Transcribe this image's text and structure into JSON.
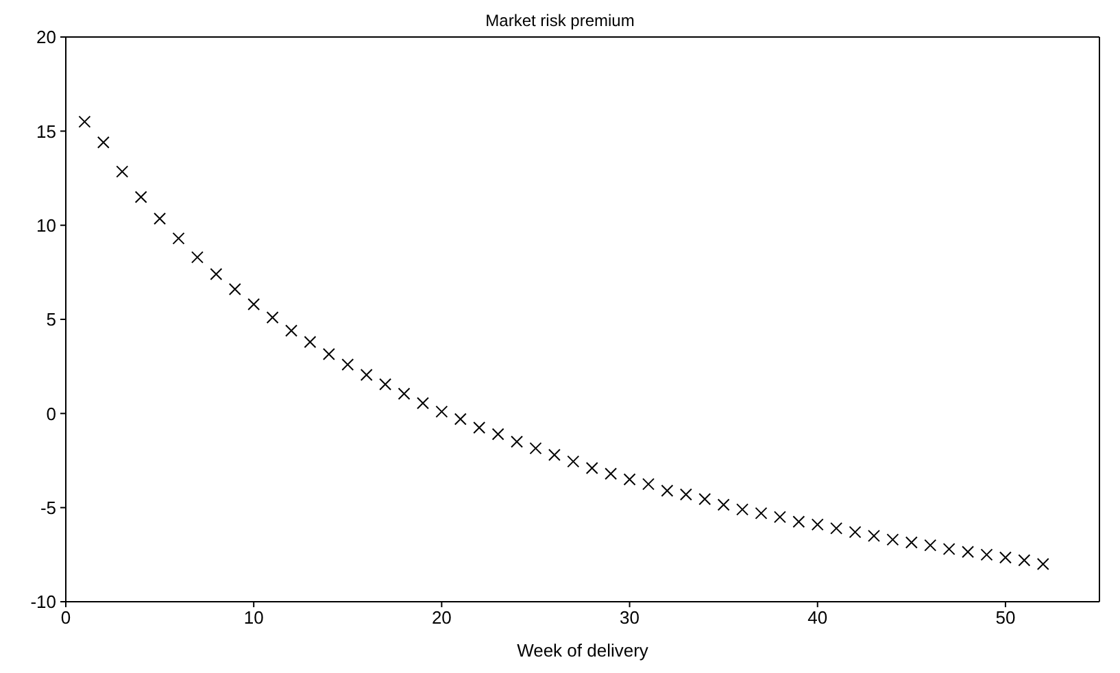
{
  "chart_data": {
    "type": "scatter",
    "title": "Market risk premium",
    "xlabel": "Week of delivery",
    "x": [
      1,
      2,
      3,
      4,
      5,
      6,
      7,
      8,
      9,
      10,
      11,
      12,
      13,
      14,
      15,
      16,
      17,
      18,
      19,
      20,
      21,
      22,
      23,
      24,
      25,
      26,
      27,
      28,
      29,
      30,
      31,
      32,
      33,
      34,
      35,
      36,
      37,
      38,
      39,
      40,
      41,
      42,
      43,
      44,
      45,
      46,
      47,
      48,
      49,
      50,
      51,
      52
    ],
    "series": [
      {
        "color": "#000000",
        "values": [
          15.5,
          14.4,
          12.85,
          11.5,
          10.35,
          9.3,
          8.3,
          7.4,
          6.6,
          5.8,
          5.1,
          4.4,
          3.8,
          3.15,
          2.6,
          2.05,
          1.55,
          1.05,
          0.55,
          0.1,
          -0.3,
          -0.75,
          -1.1,
          -1.5,
          -1.85,
          -2.2,
          -2.55,
          -2.9,
          -3.2,
          -3.5,
          -3.75,
          -4.1,
          -4.3,
          -4.55,
          -4.85,
          -5.1,
          -5.3,
          -5.5,
          -5.75,
          -5.9,
          -6.1,
          -6.3,
          -6.5,
          -6.7,
          -6.85,
          -7.0,
          -7.2,
          -7.35,
          -7.5,
          -7.65,
          -7.8,
          -8.0
        ]
      }
    ],
    "xlim": [
      0,
      55
    ],
    "xticks": [
      0,
      10,
      20,
      30,
      40,
      50
    ],
    "ylim": [
      -10,
      20
    ],
    "yticks": [
      -10,
      -5,
      0,
      5,
      10,
      15,
      20
    ],
    "marker": "cross"
  }
}
